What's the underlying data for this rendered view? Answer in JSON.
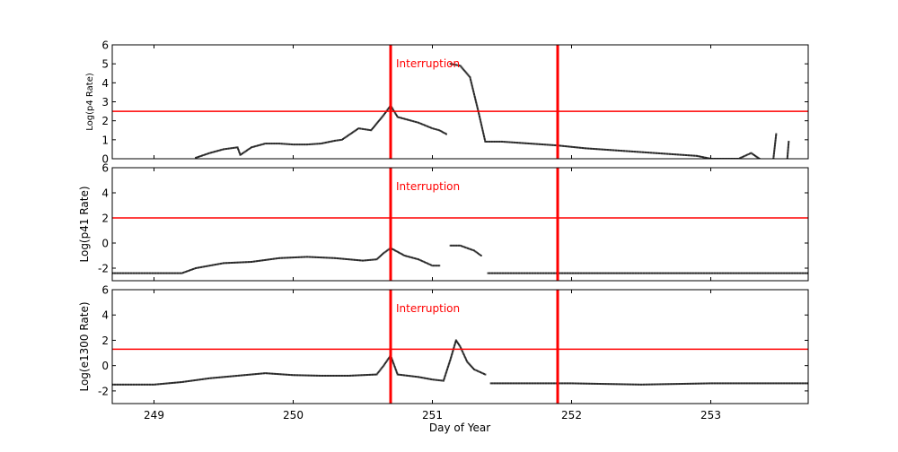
{
  "chart_data": [
    {
      "type": "scatter",
      "ylabel": "Log(p4 Rate)",
      "ylim": [
        0,
        6
      ],
      "yticks": [
        0,
        1,
        2,
        3,
        4,
        5,
        6
      ],
      "xlim": [
        248.7,
        253.7
      ],
      "threshold": 2.5,
      "interruptions": [
        250.7,
        251.9
      ],
      "annotation": "Interruption",
      "series": [
        {
          "x": [
            249.3,
            249.4,
            249.5,
            249.6,
            249.62,
            249.7,
            249.8,
            249.9,
            250.0,
            250.1,
            250.2,
            250.3,
            250.35,
            250.47,
            250.56,
            250.65,
            250.7,
            250.75,
            250.85,
            250.9,
            251.0,
            251.05,
            251.1,
            null,
            251.13,
            251.2,
            251.27,
            251.33,
            251.38,
            251.5,
            251.6,
            251.8,
            251.9,
            252.1,
            252.3,
            252.6,
            252.9,
            253.0,
            253.2,
            253.29,
            253.35,
            null,
            253.45,
            253.47,
            null,
            253.55,
            253.56
          ],
          "y": [
            0.05,
            0.3,
            0.5,
            0.6,
            0.2,
            0.6,
            0.8,
            0.8,
            0.75,
            0.75,
            0.8,
            0.95,
            1.0,
            1.6,
            1.5,
            2.3,
            2.8,
            2.2,
            2.0,
            1.9,
            1.6,
            1.5,
            1.3,
            null,
            5.0,
            4.9,
            4.3,
            2.5,
            0.9,
            0.9,
            0.85,
            0.75,
            0.7,
            0.55,
            0.45,
            0.3,
            0.15,
            0.0,
            0.0,
            0.3,
            0.0,
            null,
            0.0,
            1.3,
            null,
            0.0,
            0.9
          ]
        }
      ]
    },
    {
      "type": "scatter",
      "ylabel": "Log(p41 Rate)",
      "ylim": [
        -3,
        6
      ],
      "yticks": [
        -2,
        0,
        2,
        4,
        6
      ],
      "xlim": [
        248.7,
        253.7
      ],
      "threshold": 2.0,
      "interruptions": [
        250.7,
        251.9
      ],
      "annotation": "Interruption",
      "series": [
        {
          "x": [
            248.7,
            249.0,
            249.2,
            249.3,
            249.5,
            249.7,
            249.9,
            250.1,
            250.3,
            250.5,
            250.6,
            250.65,
            250.7,
            250.8,
            250.9,
            251.0,
            251.05,
            null,
            251.13,
            251.2,
            251.3,
            251.35,
            null,
            251.4,
            252.0,
            252.5,
            253.0,
            253.7
          ],
          "y": [
            -2.4,
            -2.4,
            -2.4,
            -2.0,
            -1.6,
            -1.5,
            -1.2,
            -1.1,
            -1.2,
            -1.4,
            -1.3,
            -0.8,
            -0.4,
            -1.0,
            -1.3,
            -1.8,
            -1.8,
            null,
            -0.2,
            -0.2,
            -0.6,
            -1.0,
            null,
            -2.4,
            -2.4,
            -2.4,
            -2.4,
            -2.4
          ]
        }
      ]
    },
    {
      "type": "scatter",
      "ylabel": "Log(e1300 Rate)",
      "xlabel": "Day of Year",
      "ylim": [
        -3,
        6
      ],
      "yticks": [
        -2,
        0,
        2,
        4,
        6
      ],
      "xlim": [
        248.7,
        253.7
      ],
      "xticks": [
        249,
        250,
        251,
        252,
        253
      ],
      "threshold": 1.3,
      "interruptions": [
        250.7,
        251.9
      ],
      "annotation": "Interruption",
      "series": [
        {
          "x": [
            248.7,
            249.0,
            249.2,
            249.4,
            249.6,
            249.8,
            250.0,
            250.2,
            250.4,
            250.6,
            250.65,
            250.7,
            250.75,
            250.9,
            251.0,
            251.08,
            251.13,
            251.17,
            251.2,
            251.25,
            251.3,
            251.38,
            null,
            251.42,
            252.0,
            252.5,
            253.0,
            253.7
          ],
          "y": [
            -1.5,
            -1.5,
            -1.3,
            -1.0,
            -0.8,
            -0.6,
            -0.75,
            -0.8,
            -0.8,
            -0.7,
            0.0,
            0.8,
            -0.7,
            -0.9,
            -1.1,
            -1.2,
            0.5,
            2.0,
            1.5,
            0.3,
            -0.3,
            -0.7,
            null,
            -1.4,
            -1.4,
            -1.5,
            -1.4,
            -1.4
          ]
        }
      ]
    }
  ],
  "colors": {
    "threshold": "#ff0000",
    "interruption": "#ff0000",
    "points": "#000000"
  }
}
